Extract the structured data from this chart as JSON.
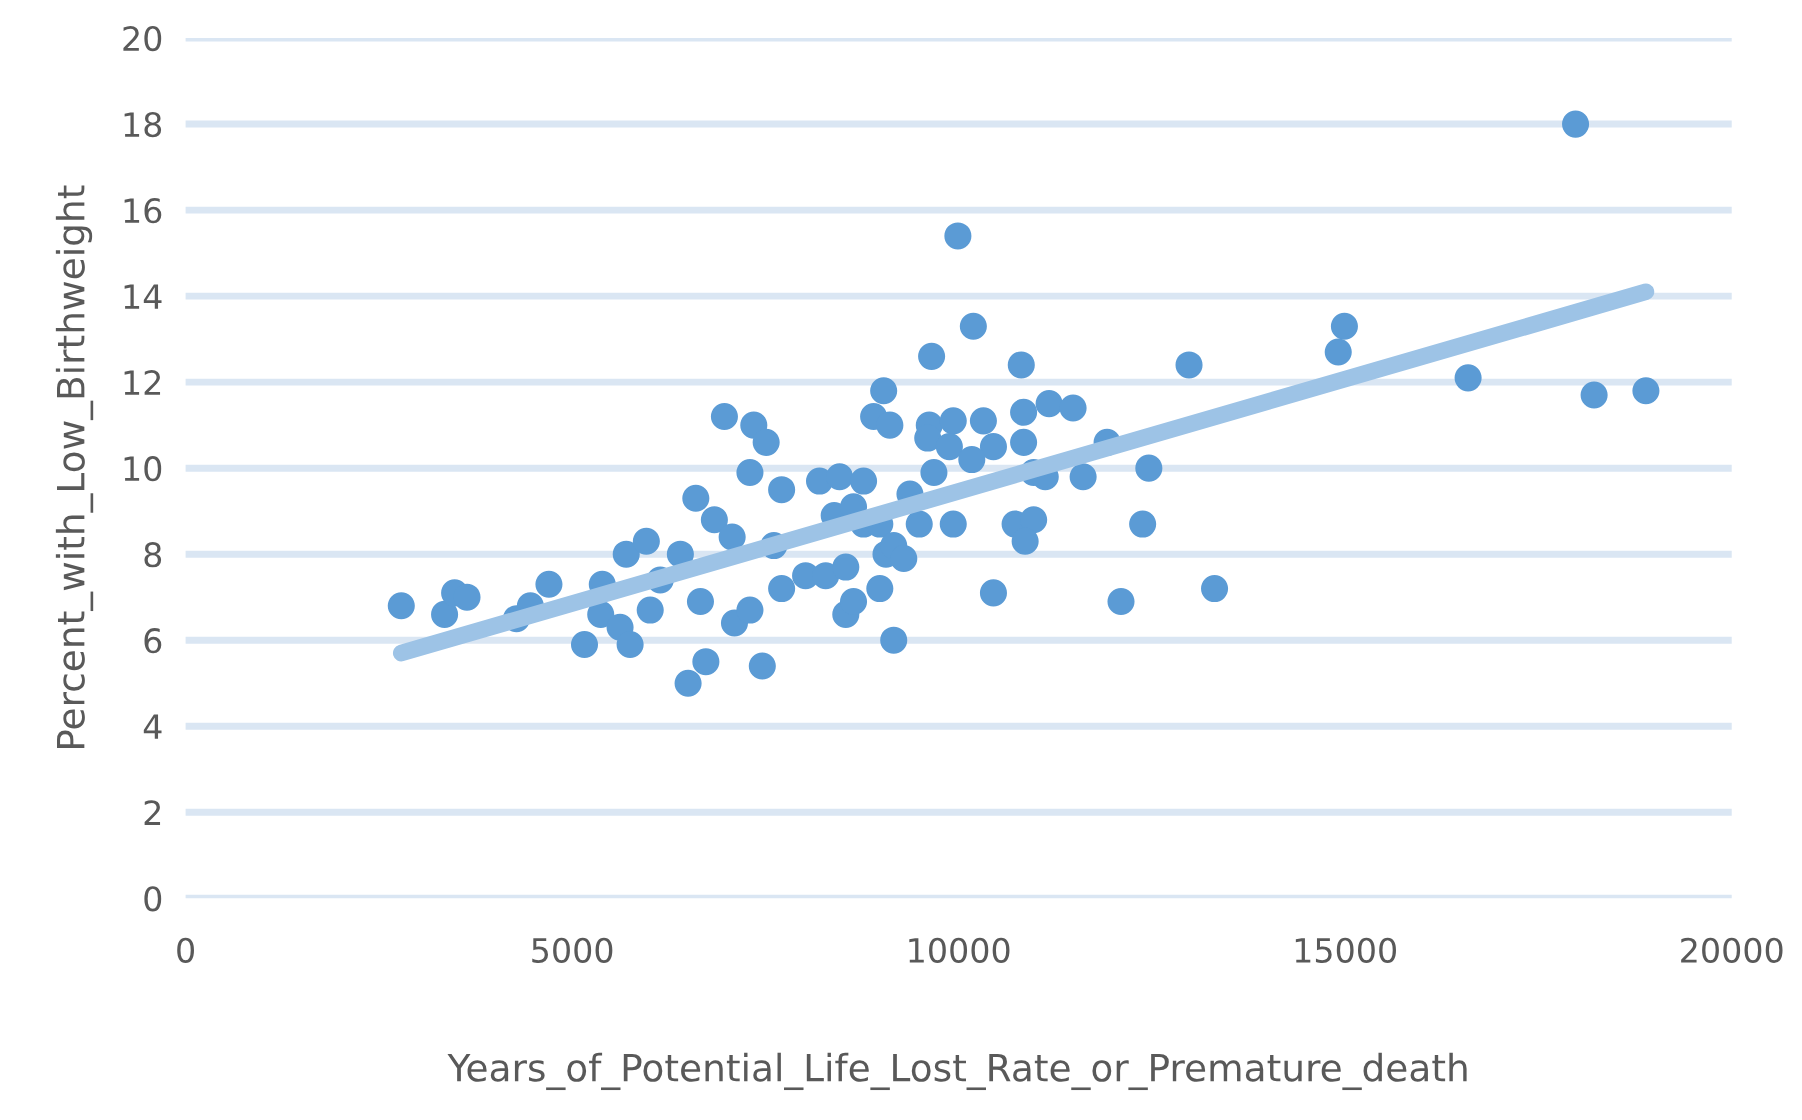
{
  "chart_data": {
    "type": "scatter",
    "xlabel": "Years_of_Potential_Life_Lost_Rate_or_Premature_death",
    "ylabel": "Percent_with_Low_Birthweight",
    "xlim": [
      0,
      20000
    ],
    "xticks": [
      0,
      5000,
      10000,
      15000,
      20000
    ],
    "ylim": [
      0,
      20
    ],
    "yticks": [
      0,
      2,
      4,
      6,
      8,
      10,
      12,
      14,
      16,
      18,
      20
    ],
    "grid": "y",
    "legend": false,
    "marker": "circle",
    "series": [
      {
        "color": "#5b9bd5",
        "x": [
          2790,
          3350,
          3480,
          3640,
          4280,
          4460,
          4700,
          5160,
          5390,
          5370,
          5620,
          5750,
          5700,
          5960,
          6010,
          6140,
          6400,
          6500,
          6600,
          6730,
          6660,
          6840,
          6970,
          7070,
          7100,
          7300,
          7300,
          7350,
          7510,
          7460,
          7610,
          7710,
          7710,
          8020,
          8200,
          8280,
          8390,
          8460,
          8540,
          8640,
          8770,
          8770,
          9030,
          8900,
          9110,
          8980,
          9060,
          9160,
          9990,
          10190,
          9650,
          10810,
          9620,
          9930,
          10320,
          10840,
          11170,
          11480,
          9600,
          9880,
          10450,
          10840,
          10170,
          9680,
          10970,
          11120,
          11610,
          11920,
          12460,
          12980,
          14990,
          14910,
          9370,
          8640,
          8980,
          9490,
          9930,
          10730,
          10970,
          10860,
          12380,
          9160,
          9290,
          8540,
          10450,
          12100,
          13310,
          17980,
          16590,
          18220,
          18890
        ],
        "values": [
          6.8,
          6.6,
          7.1,
          7.0,
          6.5,
          6.8,
          7.3,
          5.9,
          7.3,
          6.6,
          6.3,
          5.9,
          8.0,
          8.3,
          6.7,
          7.4,
          8.0,
          5.0,
          9.3,
          5.5,
          6.9,
          8.8,
          11.2,
          8.4,
          6.4,
          6.7,
          9.9,
          11.0,
          10.6,
          5.4,
          8.2,
          9.5,
          7.2,
          7.5,
          9.7,
          7.5,
          8.9,
          9.8,
          6.6,
          6.9,
          9.7,
          8.7,
          11.8,
          11.2,
          11.0,
          7.2,
          8.0,
          6.0,
          15.4,
          13.3,
          12.6,
          12.4,
          11.0,
          11.1,
          11.1,
          11.3,
          11.5,
          11.4,
          10.7,
          10.5,
          10.5,
          10.6,
          10.2,
          9.9,
          9.9,
          9.8,
          9.8,
          10.6,
          10.0,
          12.4,
          13.3,
          12.7,
          9.4,
          9.1,
          8.7,
          8.7,
          8.7,
          8.7,
          8.8,
          8.3,
          8.7,
          8.2,
          7.9,
          7.7,
          7.1,
          6.9,
          7.2,
          18.0,
          12.1,
          11.7,
          11.8
        ]
      },
      {
        "type": "line",
        "color": "#9dc3e6",
        "marker": "none",
        "line_style": "solid",
        "x": [
          2790,
          18890
        ],
        "values": [
          5.7,
          14.1
        ]
      }
    ]
  }
}
